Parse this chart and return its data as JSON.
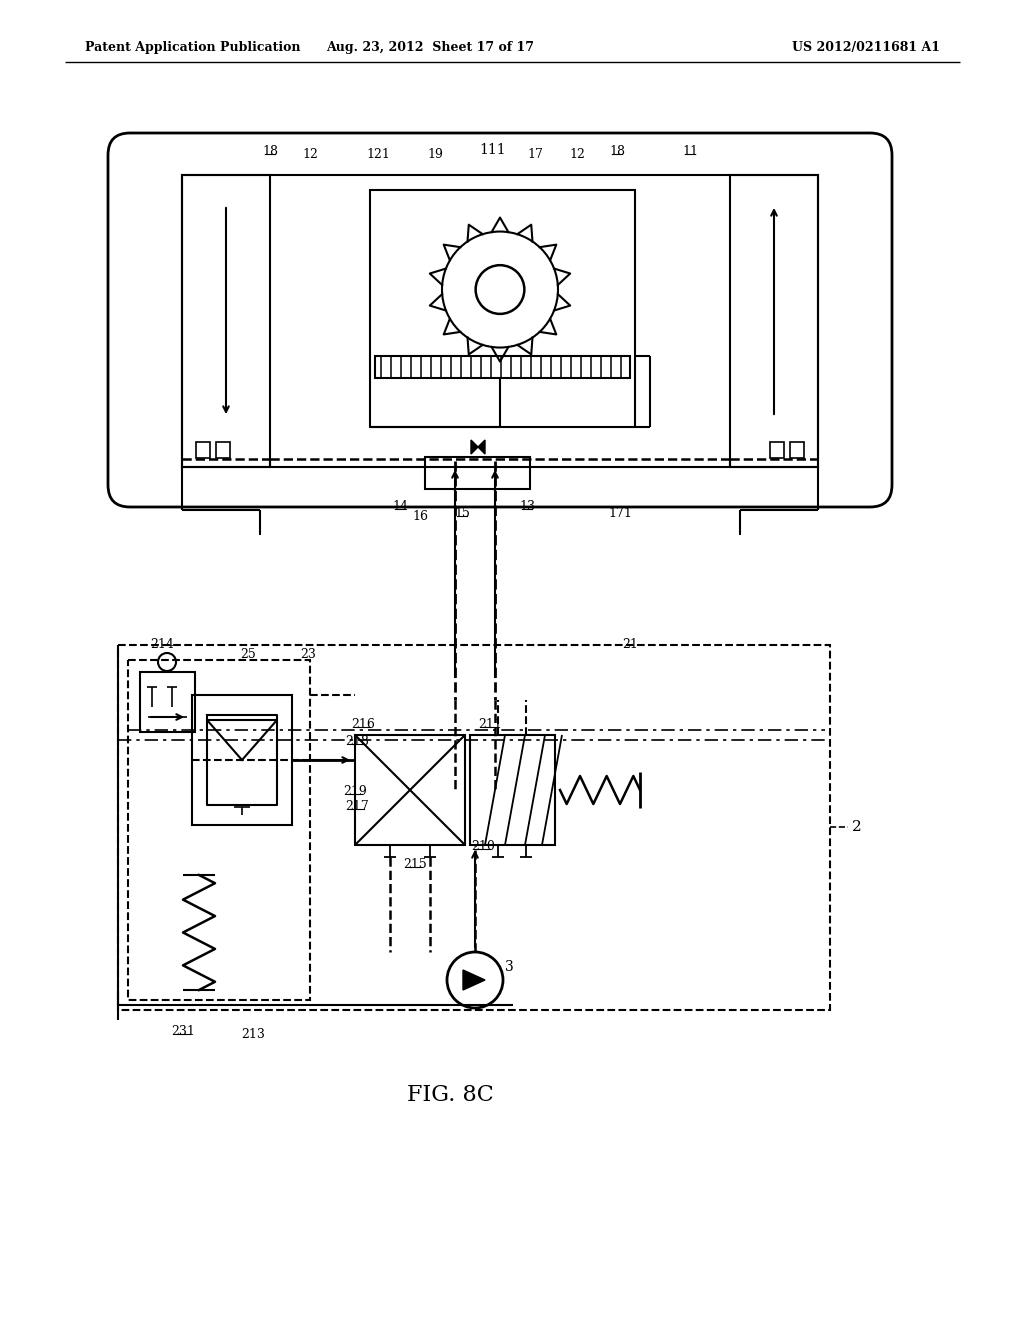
{
  "title": "FIG. 8C",
  "header_left": "Patent Application Publication",
  "header_middle": "Aug. 23, 2012  Sheet 17 of 17",
  "header_right": "US 2012/0211681 A1",
  "bg_color": "#ffffff",
  "line_color": "#000000",
  "fig_width": 10.24,
  "fig_height": 13.2,
  "dpi": 100
}
